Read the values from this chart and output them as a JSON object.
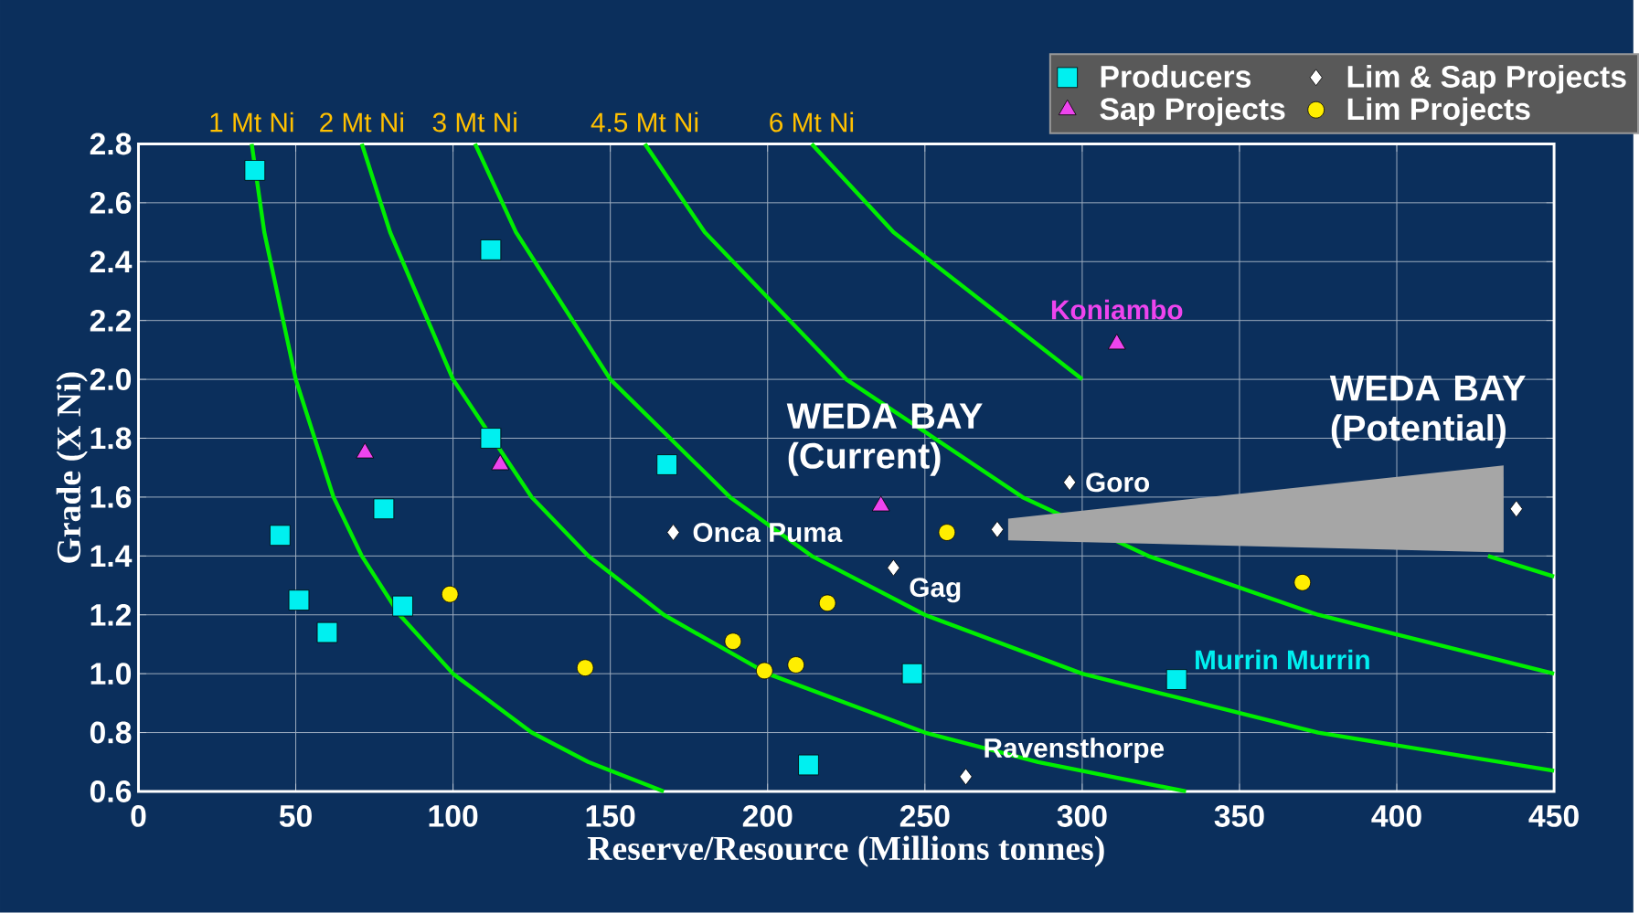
{
  "chart_data": {
    "type": "scatter",
    "xlabel": "**Reserve/Resource** (Millions tonnes)",
    "ylabel": "**Grade** (X Ni)",
    "xlim": [
      0,
      450
    ],
    "xticks": [
      0,
      50,
      100,
      150,
      200,
      250,
      300,
      350,
      400,
      450
    ],
    "ylim": [
      0.6,
      2.8
    ],
    "yticks": [
      0.6,
      0.8,
      {
        "value": 1.0,
        "label": "1.0"
      },
      1.2,
      1.4,
      1.6,
      1.8,
      {
        "value": 2.0,
        "label": "2.0"
      },
      2.2,
      2.4,
      2.6,
      2.8
    ],
    "grid": true,
    "legend": "top right",
    "series": [
      {
        "name": "1 Mt Ni",
        "type": "line",
        "marker": "none",
        "color": "#00ee00",
        "x": [
          36,
          40,
          50,
          62,
          71,
          83,
          100,
          125,
          143,
          167
        ],
        "values": [
          2.8,
          2.5,
          2.0,
          1.6,
          1.4,
          1.2,
          1.0,
          0.8,
          0.7,
          0.6
        ]
      },
      {
        "name": "2 Mt Ni",
        "type": "line",
        "marker": "none",
        "color": "#00ee00",
        "x": [
          71,
          80,
          100,
          125,
          143,
          167,
          200,
          250,
          286,
          333
        ],
        "values": [
          2.8,
          2.5,
          2.0,
          1.6,
          1.4,
          1.2,
          1.0,
          0.8,
          0.7,
          0.6
        ]
      },
      {
        "name": "3 Mt Ni",
        "type": "line",
        "marker": "none",
        "color": "#00ee00",
        "x": [
          107,
          120,
          150,
          188,
          214,
          250,
          300,
          375,
          450
        ],
        "values": [
          2.8,
          2.5,
          2.0,
          1.6,
          1.4,
          1.2,
          1.0,
          0.8,
          0.67
        ]
      },
      {
        "name": "4.5 Mt Ni",
        "type": "line",
        "marker": "none",
        "color": "#00ee00",
        "x": [
          161,
          180,
          225,
          281,
          321,
          375,
          450
        ],
        "values": [
          2.8,
          2.5,
          2.0,
          1.6,
          1.4,
          1.2,
          1.0
        ]
      },
      {
        "name": "6 Mt Ni",
        "type": "line",
        "marker": "none",
        "color": "#00ee00",
        "x": [
          214,
          240,
          300,
          375,
          429,
          450
        ],
        "values": [
          2.8,
          2.5,
          2.0,
          null,
          1.4,
          1.33
        ]
      },
      {
        "name": "Producers",
        "marker": "square",
        "color": "#00f0f0",
        "x": [
          37,
          112,
          112,
          168,
          78,
          45,
          51,
          60,
          84,
          246,
          213,
          330
        ],
        "values": [
          2.71,
          2.44,
          1.8,
          1.71,
          1.56,
          1.47,
          1.25,
          1.14,
          1.23,
          1.0,
          0.69,
          0.98
        ]
      },
      {
        "name": "Lim & Sap Projects",
        "marker": "diamond",
        "color": "#ffffff",
        "x": [
          170,
          240,
          263,
          296,
          273,
          438
        ],
        "values": [
          1.48,
          1.36,
          0.65,
          1.65,
          1.49,
          1.56
        ]
      },
      {
        "name": "Sap Projects",
        "marker": "triangle",
        "color": "#ee44ee",
        "x": [
          72,
          115,
          236,
          311
        ],
        "values": [
          1.75,
          1.71,
          1.57,
          2.12
        ]
      },
      {
        "name": "Lim Projects",
        "marker": "circle",
        "color": "#ffee00",
        "x": [
          99,
          142,
          189,
          199,
          209,
          219,
          257,
          370
        ],
        "values": [
          1.27,
          1.02,
          1.11,
          1.01,
          1.03,
          1.24,
          1.48,
          1.31
        ]
      }
    ],
    "annotations": [
      {
        "text": "Koniambo",
        "x": 311,
        "y": 2.12
      },
      {
        "text": "WEDA BAY (Current)",
        "x": 273,
        "y": 1.49
      },
      {
        "text": "Goro",
        "x": 296,
        "y": 1.65
      },
      {
        "text": "Onca Puma",
        "x": 170,
        "y": 1.48
      },
      {
        "text": "Gag",
        "x": 240,
        "y": 1.36
      },
      {
        "text": "Murrin Murrin",
        "x": 330,
        "y": 0.98
      },
      {
        "text": "Ravensthorpe",
        "x": 263,
        "y": 0.65
      },
      {
        "text": "WEDA BAY (Potential)",
        "x": 438,
        "y": 1.56
      }
    ]
  }
}
